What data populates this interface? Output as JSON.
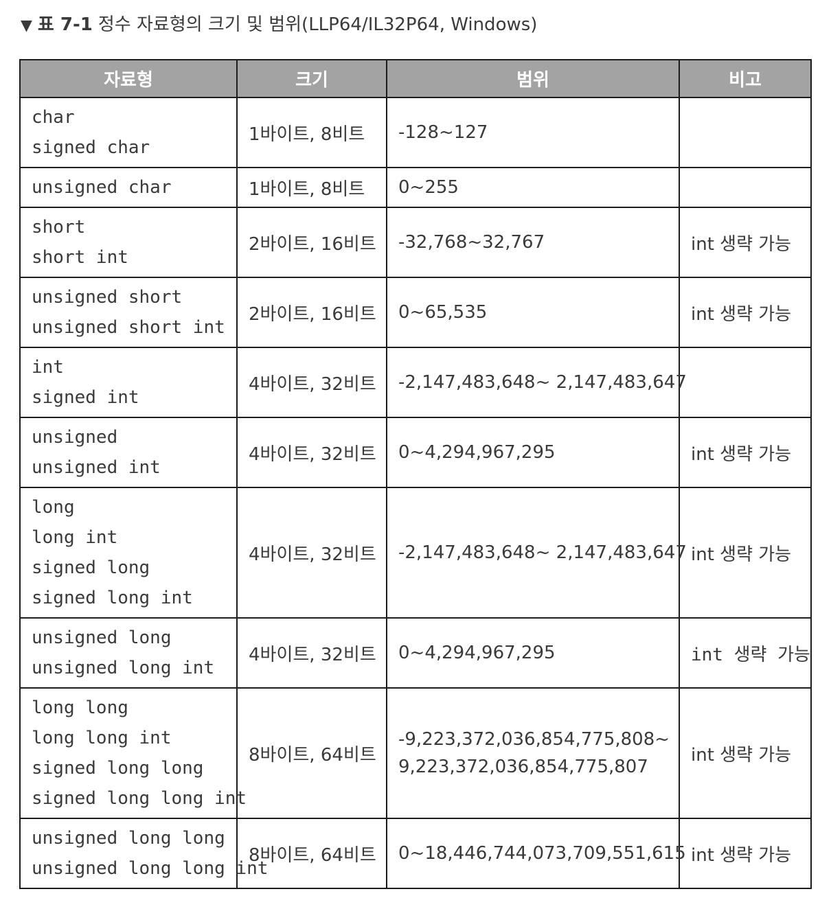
{
  "caption": {
    "marker": "▼",
    "label": "표 7-1",
    "title": "정수 자료형의 크기 및 범위(LLP64/IL32P64, Windows)"
  },
  "table": {
    "headers": [
      "자료형",
      "크기",
      "범위",
      "비고"
    ],
    "rows": [
      {
        "types": [
          "char",
          "signed char"
        ],
        "size": "1바이트, 8비트",
        "range": [
          "-128~127"
        ],
        "note": ""
      },
      {
        "types": [
          "unsigned char"
        ],
        "size": "1바이트, 8비트",
        "range": [
          "0~255"
        ],
        "note": ""
      },
      {
        "types": [
          "short",
          "short int"
        ],
        "size": "2바이트, 16비트",
        "range": [
          "-32,768~32,767"
        ],
        "note": "int 생략 가능"
      },
      {
        "types": [
          "unsigned short",
          "unsigned short int"
        ],
        "size": "2바이트, 16비트",
        "range": [
          "0~65,535"
        ],
        "note": "int 생략 가능"
      },
      {
        "types": [
          "int",
          "signed int"
        ],
        "size": "4바이트, 32비트",
        "range": [
          "-2,147,483,648~ 2,147,483,647"
        ],
        "note": ""
      },
      {
        "types": [
          "unsigned",
          "unsigned int"
        ],
        "size": "4바이트, 32비트",
        "range": [
          "0~4,294,967,295"
        ],
        "note": "int 생략 가능"
      },
      {
        "types": [
          "long",
          "long int",
          "signed long",
          "signed long int"
        ],
        "size": "4바이트, 32비트",
        "range": [
          "-2,147,483,648~ 2,147,483,647"
        ],
        "note": "int 생략 가능"
      },
      {
        "types": [
          "unsigned long",
          "unsigned long int"
        ],
        "size": "4바이트, 32비트",
        "range": [
          "0~4,294,967,295"
        ],
        "note": "int 생략 가능"
      },
      {
        "types": [
          "long long",
          "long long int",
          "signed long long",
          "signed long long int"
        ],
        "size": "8바이트, 64비트",
        "range": [
          "-9,223,372,036,854,775,808~",
          "9,223,372,036,854,775,807"
        ],
        "note": "int 생략 가능"
      },
      {
        "types": [
          "unsigned long long",
          "unsigned long long int"
        ],
        "size": "8바이트, 64비트",
        "range": [
          "0~18,446,744,073,709,551,615"
        ],
        "note": "int 생략 가능"
      }
    ]
  }
}
